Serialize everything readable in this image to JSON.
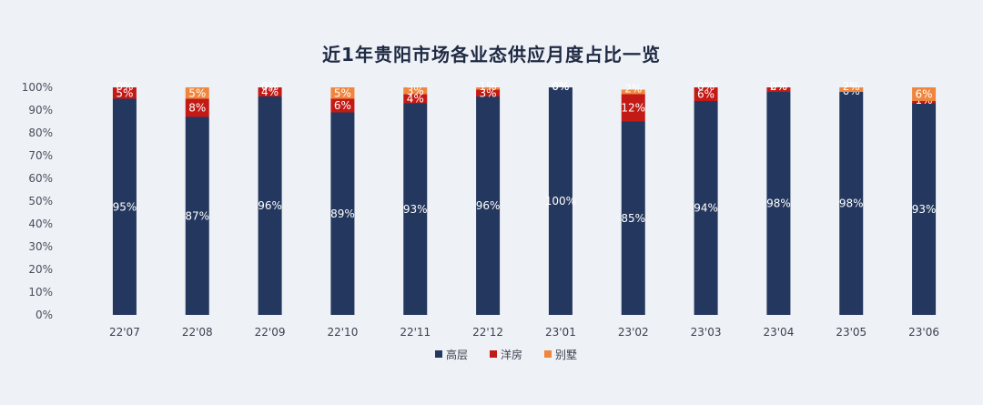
{
  "chart_data": {
    "type": "bar",
    "stacked": true,
    "title": "近1年贵阳市场各业态供应月度占比一览",
    "xlabel": "",
    "ylabel": "",
    "ylim": [
      0,
      100
    ],
    "yticks": [
      "0%",
      "10%",
      "20%",
      "30%",
      "40%",
      "50%",
      "60%",
      "70%",
      "80%",
      "90%",
      "100%"
    ],
    "grid": false,
    "legend_position": "bottom",
    "categories": [
      "22'07",
      "22'08",
      "22'09",
      "22'10",
      "22'11",
      "22'12",
      "23'01",
      "23'02",
      "23'03",
      "23'04",
      "23'05",
      "23'06"
    ],
    "series": [
      {
        "name": "高层",
        "color": "#24375e",
        "values": [
          95,
          87,
          96,
          89,
          93,
          96,
          100,
          85,
          94,
          98,
          98,
          93
        ]
      },
      {
        "name": "洋房",
        "color": "#c41a15",
        "values": [
          5,
          8,
          4,
          6,
          4,
          3,
          0,
          12,
          6,
          2,
          0,
          1
        ]
      },
      {
        "name": "别墅",
        "color": "#f0863e",
        "values": [
          0,
          5,
          0,
          5,
          3,
          1,
          0,
          2,
          0,
          0,
          2,
          6
        ]
      }
    ]
  }
}
